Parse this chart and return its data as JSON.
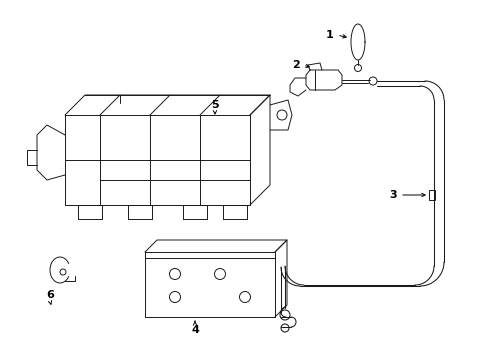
{
  "bg_color": "#ffffff",
  "lc": "#1a1a1a",
  "lw": 0.7,
  "figsize": [
    4.89,
    3.6
  ],
  "dpi": 100
}
